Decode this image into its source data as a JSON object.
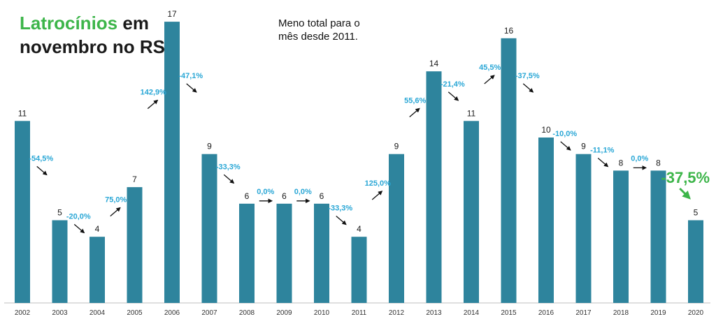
{
  "title": {
    "highlight": "Latrocínios",
    "rest1": " em",
    "line2": "novembro no RS"
  },
  "note": {
    "line1": "Meno total para o",
    "line2": "mês desde 2011."
  },
  "colors": {
    "bar": "#2e849d",
    "pct": "#2aa7d6",
    "highlight": "#3db54a",
    "text": "#1a1a1a"
  },
  "chart_data": {
    "type": "bar",
    "categories": [
      "2002",
      "2003",
      "2004",
      "2005",
      "2006",
      "2007",
      "2008",
      "2009",
      "2010",
      "2011",
      "2012",
      "2013",
      "2014",
      "2015",
      "2016",
      "2017",
      "2018",
      "2019",
      "2020"
    ],
    "values": [
      11,
      5,
      4,
      7,
      17,
      9,
      6,
      6,
      6,
      4,
      9,
      14,
      11,
      16,
      10,
      9,
      8,
      8,
      5
    ],
    "pct_changes": [
      null,
      "-54,5%",
      "-20,0%",
      "75,0%",
      "142,9%",
      "-47,1%",
      "-33,3%",
      "0,0%",
      "0,0%",
      "-33,3%",
      "125,0%",
      "55,6%",
      "-21,4%",
      "45,5%",
      "-37,5%",
      "-10,0%",
      "-11,1%",
      "0,0%",
      "-37,5%"
    ],
    "ylim": [
      0,
      17
    ],
    "grid": false,
    "legend": "none"
  }
}
